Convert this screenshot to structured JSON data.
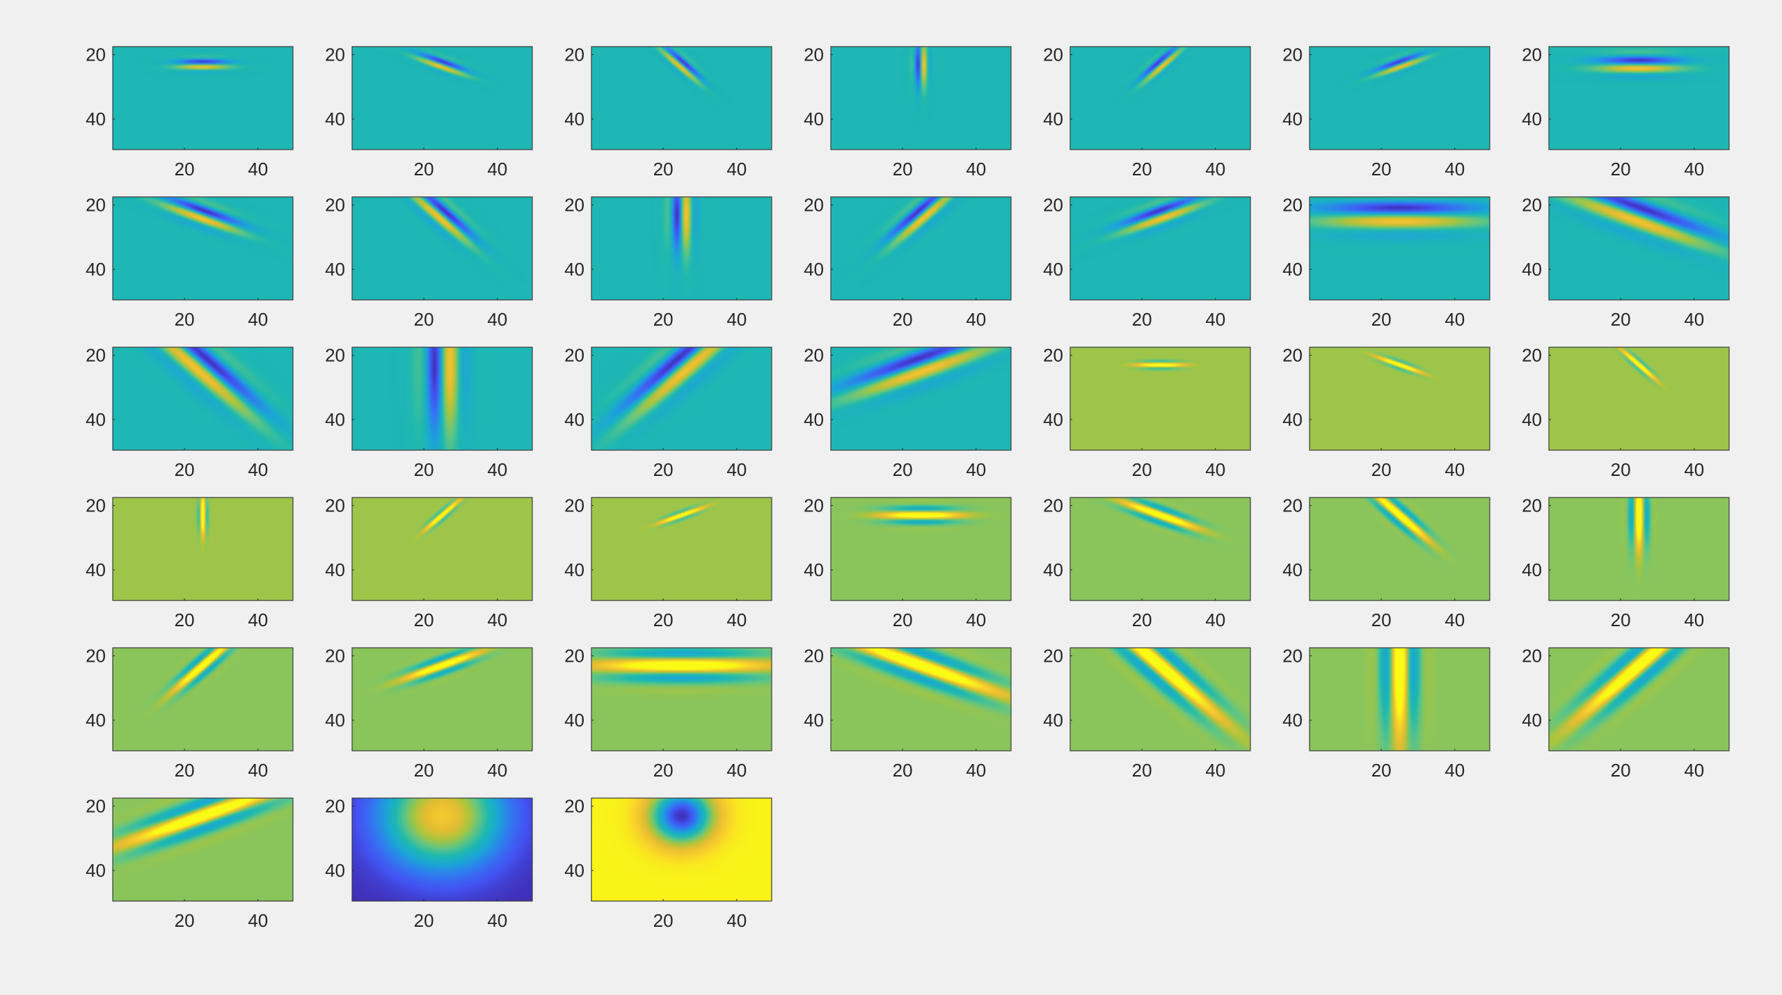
{
  "chart_data": {
    "type": "heatmap",
    "title": "",
    "colormap": "parula",
    "colormap_stops": [
      "#3e26a8",
      "#4353f2",
      "#2f7eef",
      "#1ba6d6",
      "#1eb9b0",
      "#5fc584",
      "#a9c53f",
      "#e7bd32",
      "#f9d22c",
      "#f9fb14"
    ],
    "figure_background": "#f0f0f0",
    "axes_border_color": "#3a3a3a",
    "tick_color": "#262626",
    "layout": {
      "rows": 6,
      "cols": 7
    },
    "image_size": {
      "width": 49,
      "height": 49
    },
    "xlim": [
      0.5,
      49.5
    ],
    "ylim": [
      17.5,
      49.5
    ],
    "y_reversed": true,
    "xticks": [
      20,
      40
    ],
    "yticks": [
      20,
      40
    ],
    "panels": [
      {
        "kind": "gabor",
        "theta_deg": 0,
        "sigma_x": 5,
        "sigma_y": 1.3,
        "wavelength": 4,
        "phase": "sine",
        "background": 0.43
      },
      {
        "kind": "gabor",
        "theta_deg": -22,
        "sigma_x": 5,
        "sigma_y": 1.3,
        "wavelength": 4,
        "phase": "sine",
        "background": 0.43
      },
      {
        "kind": "gabor",
        "theta_deg": -45,
        "sigma_x": 5,
        "sigma_y": 1.3,
        "wavelength": 4,
        "phase": "sine",
        "background": 0.43
      },
      {
        "kind": "gabor",
        "theta_deg": 90,
        "sigma_x": 5,
        "sigma_y": 1.3,
        "wavelength": 4,
        "phase": "sine",
        "background": 0.43
      },
      {
        "kind": "gabor",
        "theta_deg": 45,
        "sigma_x": 5,
        "sigma_y": 1.3,
        "wavelength": 4,
        "phase": "sine",
        "background": 0.43
      },
      {
        "kind": "gabor",
        "theta_deg": 22,
        "sigma_x": 5,
        "sigma_y": 1.3,
        "wavelength": 4,
        "phase": "sine",
        "background": 0.43
      },
      {
        "kind": "gabor",
        "theta_deg": 0,
        "sigma_x": 8,
        "sigma_y": 2.2,
        "wavelength": 6,
        "phase": "sine",
        "background": 0.43
      },
      {
        "kind": "gabor",
        "theta_deg": -22,
        "sigma_x": 8,
        "sigma_y": 2.2,
        "wavelength": 6,
        "phase": "sine",
        "background": 0.43
      },
      {
        "kind": "gabor",
        "theta_deg": -45,
        "sigma_x": 8,
        "sigma_y": 2.2,
        "wavelength": 6,
        "phase": "sine",
        "background": 0.43
      },
      {
        "kind": "gabor",
        "theta_deg": 90,
        "sigma_x": 8,
        "sigma_y": 2.2,
        "wavelength": 6,
        "phase": "sine",
        "background": 0.43
      },
      {
        "kind": "gabor",
        "theta_deg": 45,
        "sigma_x": 8,
        "sigma_y": 2.2,
        "wavelength": 6,
        "phase": "sine",
        "background": 0.43
      },
      {
        "kind": "gabor",
        "theta_deg": 22,
        "sigma_x": 8,
        "sigma_y": 2.2,
        "wavelength": 6,
        "phase": "sine",
        "background": 0.43
      },
      {
        "kind": "gabor",
        "theta_deg": 0,
        "sigma_x": 15,
        "sigma_y": 3.6,
        "wavelength": 10,
        "phase": "sine",
        "background": 0.43
      },
      {
        "kind": "gabor",
        "theta_deg": -22,
        "sigma_x": 15,
        "sigma_y": 3.6,
        "wavelength": 10,
        "phase": "sine",
        "background": 0.43
      },
      {
        "kind": "gabor",
        "theta_deg": -45,
        "sigma_x": 15,
        "sigma_y": 3.6,
        "wavelength": 10,
        "phase": "sine",
        "background": 0.43
      },
      {
        "kind": "gabor",
        "theta_deg": 90,
        "sigma_x": 15,
        "sigma_y": 3.6,
        "wavelength": 10,
        "phase": "sine",
        "background": 0.43
      },
      {
        "kind": "gabor",
        "theta_deg": 45,
        "sigma_x": 15,
        "sigma_y": 3.6,
        "wavelength": 10,
        "phase": "sine",
        "background": 0.43
      },
      {
        "kind": "gabor",
        "theta_deg": 22,
        "sigma_x": 15,
        "sigma_y": 3.6,
        "wavelength": 10,
        "phase": "sine",
        "background": 0.43
      },
      {
        "kind": "gabor",
        "theta_deg": 0,
        "sigma_x": 4,
        "sigma_y": 0.8,
        "wavelength": 3,
        "phase": "cosine",
        "background": 0.65
      },
      {
        "kind": "gabor",
        "theta_deg": -22,
        "sigma_x": 4,
        "sigma_y": 0.8,
        "wavelength": 3,
        "phase": "cosine",
        "background": 0.65
      },
      {
        "kind": "gabor",
        "theta_deg": -45,
        "sigma_x": 4,
        "sigma_y": 0.8,
        "wavelength": 3,
        "phase": "cosine",
        "background": 0.65
      },
      {
        "kind": "gabor",
        "theta_deg": 90,
        "sigma_x": 4,
        "sigma_y": 0.8,
        "wavelength": 3,
        "phase": "cosine",
        "background": 0.65
      },
      {
        "kind": "gabor",
        "theta_deg": 45,
        "sigma_x": 4,
        "sigma_y": 0.8,
        "wavelength": 3,
        "phase": "cosine",
        "background": 0.65
      },
      {
        "kind": "gabor",
        "theta_deg": 22,
        "sigma_x": 4,
        "sigma_y": 0.8,
        "wavelength": 3,
        "phase": "cosine",
        "background": 0.65
      },
      {
        "kind": "gabor",
        "theta_deg": 0,
        "sigma_x": 7,
        "sigma_y": 1.7,
        "wavelength": 5,
        "phase": "cosine",
        "background": 0.62
      },
      {
        "kind": "gabor",
        "theta_deg": -22,
        "sigma_x": 7,
        "sigma_y": 1.7,
        "wavelength": 5,
        "phase": "cosine",
        "background": 0.62
      },
      {
        "kind": "gabor",
        "theta_deg": -45,
        "sigma_x": 7,
        "sigma_y": 1.7,
        "wavelength": 5,
        "phase": "cosine",
        "background": 0.62
      },
      {
        "kind": "gabor",
        "theta_deg": 90,
        "sigma_x": 7,
        "sigma_y": 1.7,
        "wavelength": 5,
        "phase": "cosine",
        "background": 0.62
      },
      {
        "kind": "gabor",
        "theta_deg": 45,
        "sigma_x": 7,
        "sigma_y": 1.7,
        "wavelength": 5,
        "phase": "cosine",
        "background": 0.62
      },
      {
        "kind": "gabor",
        "theta_deg": 22,
        "sigma_x": 7,
        "sigma_y": 1.7,
        "wavelength": 5,
        "phase": "cosine",
        "background": 0.62
      },
      {
        "kind": "gabor",
        "theta_deg": 0,
        "sigma_x": 15,
        "sigma_y": 3.3,
        "wavelength": 9,
        "phase": "cosine",
        "background": 0.62
      },
      {
        "kind": "gabor",
        "theta_deg": -22,
        "sigma_x": 15,
        "sigma_y": 3.3,
        "wavelength": 9,
        "phase": "cosine",
        "background": 0.62
      },
      {
        "kind": "gabor",
        "theta_deg": -45,
        "sigma_x": 15,
        "sigma_y": 3.3,
        "wavelength": 9,
        "phase": "cosine",
        "background": 0.62
      },
      {
        "kind": "gabor",
        "theta_deg": 90,
        "sigma_x": 15,
        "sigma_y": 3.3,
        "wavelength": 9,
        "phase": "cosine",
        "background": 0.62
      },
      {
        "kind": "gabor",
        "theta_deg": 45,
        "sigma_x": 15,
        "sigma_y": 3.3,
        "wavelength": 9,
        "phase": "cosine",
        "background": 0.62
      },
      {
        "kind": "gabor",
        "theta_deg": 22,
        "sigma_x": 15,
        "sigma_y": 3.3,
        "wavelength": 9,
        "phase": "cosine",
        "background": 0.62
      },
      {
        "kind": "gaussian",
        "sigma": 11,
        "polarity": "peak"
      },
      {
        "kind": "gaussian",
        "sigma": 6,
        "polarity": "dip"
      }
    ]
  }
}
